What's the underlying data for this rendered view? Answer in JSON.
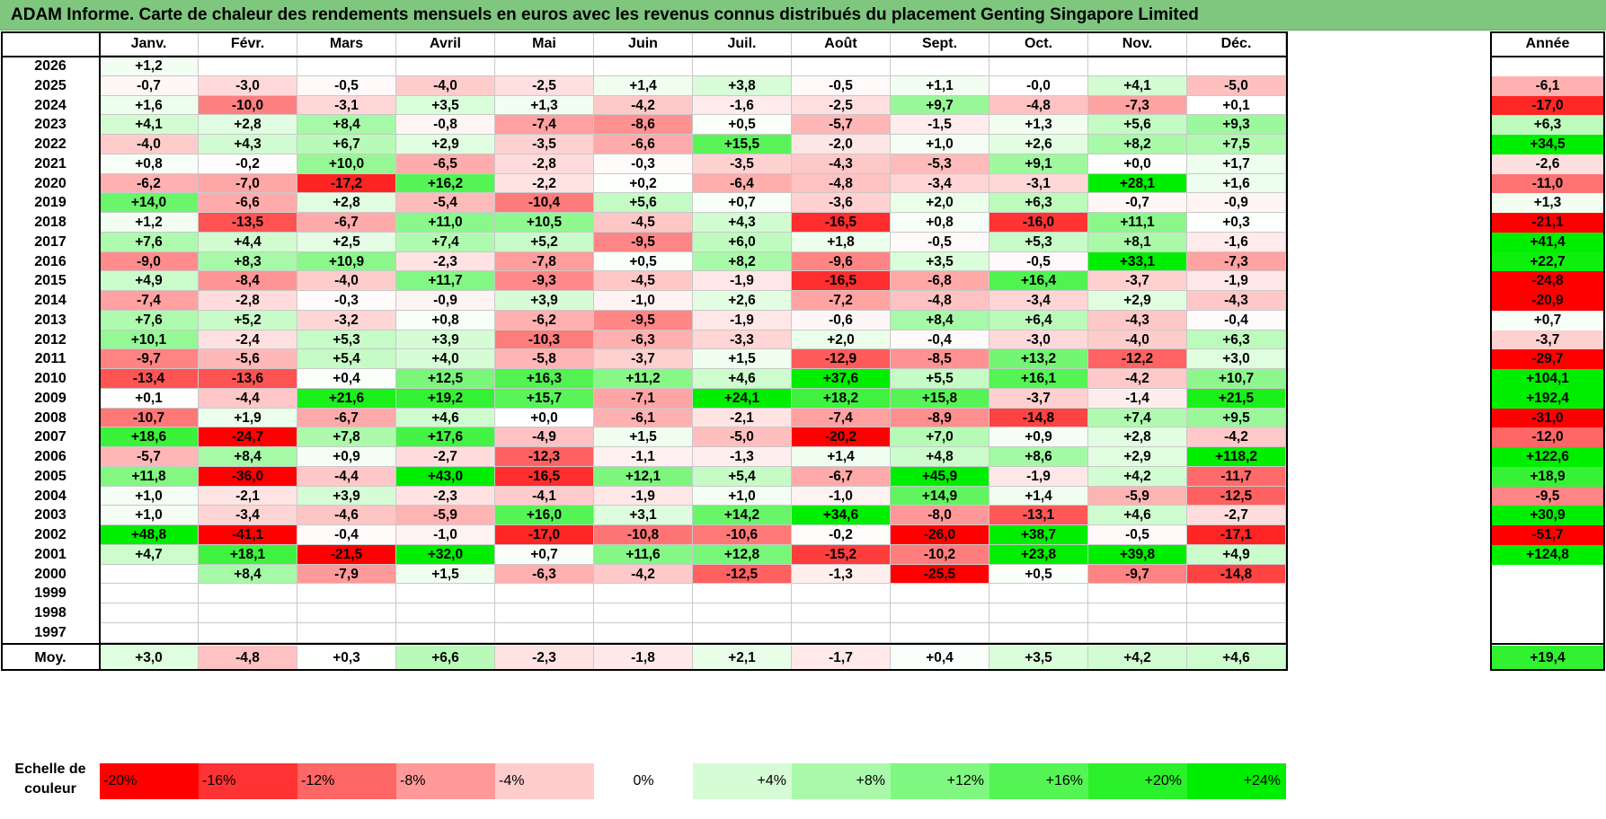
{
  "chart_data": {
    "type": "heatmap",
    "title": "ADAM Informe. Carte de chaleur des rendements mensuels en euros avec les revenus connus distribués du placement Genting Singapore Limited",
    "columns": [
      "Janv.",
      "Févr.",
      "Mars",
      "Avril",
      "Mai",
      "Juin",
      "Juil.",
      "Août",
      "Sept.",
      "Oct.",
      "Nov.",
      "Déc."
    ],
    "year_column_label": "Année",
    "average_label": "Moy.",
    "scale_label": "Echelle de couleur",
    "rows": [
      {
        "year": "2026",
        "months": [
          "+1,2",
          "",
          "",
          "",
          "",
          "",
          "",
          "",
          "",
          "",
          "",
          ""
        ],
        "annual": ""
      },
      {
        "year": "2025",
        "months": [
          "-0,7",
          "-3,0",
          "-0,5",
          "-4,0",
          "-2,5",
          "+1,4",
          "+3,8",
          "-0,5",
          "+1,1",
          "-0,0",
          "+4,1",
          "-5,0"
        ],
        "annual": "-6,1"
      },
      {
        "year": "2024",
        "months": [
          "+1,6",
          "-10,0",
          "-3,1",
          "+3,5",
          "+1,3",
          "-4,2",
          "-1,6",
          "-2,5",
          "+9,7",
          "-4,8",
          "-7,3",
          "+0,1"
        ],
        "annual": "-17,0"
      },
      {
        "year": "2023",
        "months": [
          "+4,1",
          "+2,8",
          "+8,4",
          "-0,8",
          "-7,4",
          "-8,6",
          "+0,5",
          "-5,7",
          "-1,5",
          "+1,3",
          "+5,6",
          "+9,3"
        ],
        "annual": "+6,3"
      },
      {
        "year": "2022",
        "months": [
          "-4,0",
          "+4,3",
          "+6,7",
          "+2,9",
          "-3,5",
          "-6,6",
          "+15,5",
          "-2,0",
          "+1,0",
          "+2,6",
          "+8,2",
          "+7,5"
        ],
        "annual": "+34,5"
      },
      {
        "year": "2021",
        "months": [
          "+0,8",
          "-0,2",
          "+10,0",
          "-6,5",
          "-2,8",
          "-0,3",
          "-3,5",
          "-4,3",
          "-5,3",
          "+9,1",
          "+0,0",
          "+1,7"
        ],
        "annual": "-2,6"
      },
      {
        "year": "2020",
        "months": [
          "-6,2",
          "-7,0",
          "-17,2",
          "+16,2",
          "-2,2",
          "+0,2",
          "-6,4",
          "-4,8",
          "-3,4",
          "-3,1",
          "+28,1",
          "+1,6"
        ],
        "annual": "-11,0"
      },
      {
        "year": "2019",
        "months": [
          "+14,0",
          "-6,6",
          "+2,8",
          "-5,4",
          "-10,4",
          "+5,6",
          "+0,7",
          "-3,6",
          "+2,0",
          "+6,3",
          "-0,7",
          "-0,9"
        ],
        "annual": "+1,3"
      },
      {
        "year": "2018",
        "months": [
          "+1,2",
          "-13,5",
          "-6,7",
          "+11,0",
          "+10,5",
          "-4,5",
          "+4,3",
          "-16,5",
          "+0,8",
          "-16,0",
          "+11,1",
          "+0,3"
        ],
        "annual": "-21,1"
      },
      {
        "year": "2017",
        "months": [
          "+7,6",
          "+4,4",
          "+2,5",
          "+7,4",
          "+5,2",
          "-9,5",
          "+6,0",
          "+1,8",
          "-0,5",
          "+5,3",
          "+8,1",
          "-1,6"
        ],
        "annual": "+41,4"
      },
      {
        "year": "2016",
        "months": [
          "-9,0",
          "+8,3",
          "+10,9",
          "-2,3",
          "-7,8",
          "+0,5",
          "+8,2",
          "-9,6",
          "+3,5",
          "-0,5",
          "+33,1",
          "-7,3"
        ],
        "annual": "+22,7"
      },
      {
        "year": "2015",
        "months": [
          "+4,9",
          "-8,4",
          "-4,0",
          "+11,7",
          "-9,3",
          "-4,5",
          "-1,9",
          "-16,5",
          "-6,8",
          "+16,4",
          "-3,7",
          "-1,9"
        ],
        "annual": "-24,8"
      },
      {
        "year": "2014",
        "months": [
          "-7,4",
          "-2,8",
          "-0,3",
          "-0,9",
          "+3,9",
          "-1,0",
          "+2,6",
          "-7,2",
          "-4,8",
          "-3,4",
          "+2,9",
          "-4,3"
        ],
        "annual": "-20,9"
      },
      {
        "year": "2013",
        "months": [
          "+7,6",
          "+5,2",
          "-3,2",
          "+0,8",
          "-6,2",
          "-9,5",
          "-1,9",
          "-0,6",
          "+8,4",
          "+6,4",
          "-4,3",
          "-0,4"
        ],
        "annual": "+0,7"
      },
      {
        "year": "2012",
        "months": [
          "+10,1",
          "-2,4",
          "+5,3",
          "+3,9",
          "-10,3",
          "-6,3",
          "-3,3",
          "+2,0",
          "-0,4",
          "-3,0",
          "-4,0",
          "+6,3"
        ],
        "annual": "-3,7"
      },
      {
        "year": "2011",
        "months": [
          "-9,7",
          "-5,6",
          "+5,4",
          "+4,0",
          "-5,8",
          "-3,7",
          "+1,5",
          "-12,9",
          "-8,5",
          "+13,2",
          "-12,2",
          "+3,0"
        ],
        "annual": "-29,7"
      },
      {
        "year": "2010",
        "months": [
          "-13,4",
          "-13,6",
          "+0,4",
          "+12,5",
          "+16,3",
          "+11,2",
          "+4,6",
          "+37,6",
          "+5,5",
          "+16,1",
          "-4,2",
          "+10,7"
        ],
        "annual": "+104,1"
      },
      {
        "year": "2009",
        "months": [
          "+0,1",
          "-4,4",
          "+21,6",
          "+19,2",
          "+15,7",
          "-7,1",
          "+24,1",
          "+18,2",
          "+15,8",
          "-3,7",
          "-1,4",
          "+21,5"
        ],
        "annual": "+192,4"
      },
      {
        "year": "2008",
        "months": [
          "-10,7",
          "+1,9",
          "-6,7",
          "+4,6",
          "+0,0",
          "-6,1",
          "-2,1",
          "-7,4",
          "-8,9",
          "-14,8",
          "+7,4",
          "+9,5"
        ],
        "annual": "-31,0"
      },
      {
        "year": "2007",
        "months": [
          "+18,6",
          "-24,7",
          "+7,8",
          "+17,6",
          "-4,9",
          "+1,5",
          "-5,0",
          "-20,2",
          "+7,0",
          "+0,9",
          "+2,8",
          "-4,2"
        ],
        "annual": "-12,0"
      },
      {
        "year": "2006",
        "months": [
          "-5,7",
          "+8,4",
          "+0,9",
          "-2,7",
          "-12,3",
          "-1,1",
          "-1,3",
          "+1,4",
          "+4,8",
          "+8,6",
          "+2,9",
          "+118,2"
        ],
        "annual": "+122,6"
      },
      {
        "year": "2005",
        "months": [
          "+11,8",
          "-36,0",
          "-4,4",
          "+43,0",
          "-16,5",
          "+12,1",
          "+5,4",
          "-6,7",
          "+45,9",
          "-1,9",
          "+4,2",
          "-11,7"
        ],
        "annual": "+18,9"
      },
      {
        "year": "2004",
        "months": [
          "+1,0",
          "-2,1",
          "+3,9",
          "-2,3",
          "-4,1",
          "-1,9",
          "+1,0",
          "-1,0",
          "+14,9",
          "+1,4",
          "-5,9",
          "-12,5"
        ],
        "annual": "-9,5"
      },
      {
        "year": "2003",
        "months": [
          "+1,0",
          "-3,4",
          "-4,6",
          "-5,9",
          "+16,0",
          "+3,1",
          "+14,2",
          "+34,6",
          "-8,0",
          "-13,1",
          "+4,6",
          "-2,7"
        ],
        "annual": "+30,9"
      },
      {
        "year": "2002",
        "months": [
          "+48,8",
          "-41,1",
          "-0,4",
          "-1,0",
          "-17,0",
          "-10,8",
          "-10,6",
          "-0,2",
          "-26,0",
          "+38,7",
          "-0,5",
          "-17,1"
        ],
        "annual": "-51,7"
      },
      {
        "year": "2001",
        "months": [
          "+4,7",
          "+18,1",
          "-21,5",
          "+32,0",
          "+0,7",
          "+11,6",
          "+12,8",
          "-15,2",
          "-10,2",
          "+23,8",
          "+39,8",
          "+4,9"
        ],
        "annual": "+124,8"
      },
      {
        "year": "2000",
        "months": [
          "",
          "+8,4",
          "-7,9",
          "+1,5",
          "-6,3",
          "-4,2",
          "-12,5",
          "-1,3",
          "-25,5",
          "+0,5",
          "-9,7",
          "-14,8"
        ],
        "annual": ""
      },
      {
        "year": "1999",
        "months": [
          "",
          "",
          "",
          "",
          "",
          "",
          "",
          "",
          "",
          "",
          "",
          ""
        ],
        "annual": ""
      },
      {
        "year": "1998",
        "months": [
          "",
          "",
          "",
          "",
          "",
          "",
          "",
          "",
          "",
          "",
          "",
          ""
        ],
        "annual": ""
      },
      {
        "year": "1997",
        "months": [
          "",
          "",
          "",
          "",
          "",
          "",
          "",
          "",
          "",
          "",
          "",
          ""
        ],
        "annual": ""
      }
    ],
    "average": {
      "months": [
        "+3,0",
        "-4,8",
        "+0,3",
        "+6,6",
        "-2,3",
        "-1,8",
        "+2,1",
        "-1,7",
        "+0,4",
        "+3,5",
        "+4,2",
        "+4,6"
      ],
      "annual": "+19,4"
    },
    "scale": [
      "-20%",
      "-16%",
      "-12%",
      "-8%",
      "-4%",
      "0%",
      "+4%",
      "+8%",
      "+12%",
      "+16%",
      "+20%",
      "+24%"
    ],
    "colors": {
      "title_bg": "#7fc77f",
      "neg_full": "#ff0000",
      "pos_full": "#00ee00",
      "neutral": "#ffffff"
    }
  }
}
